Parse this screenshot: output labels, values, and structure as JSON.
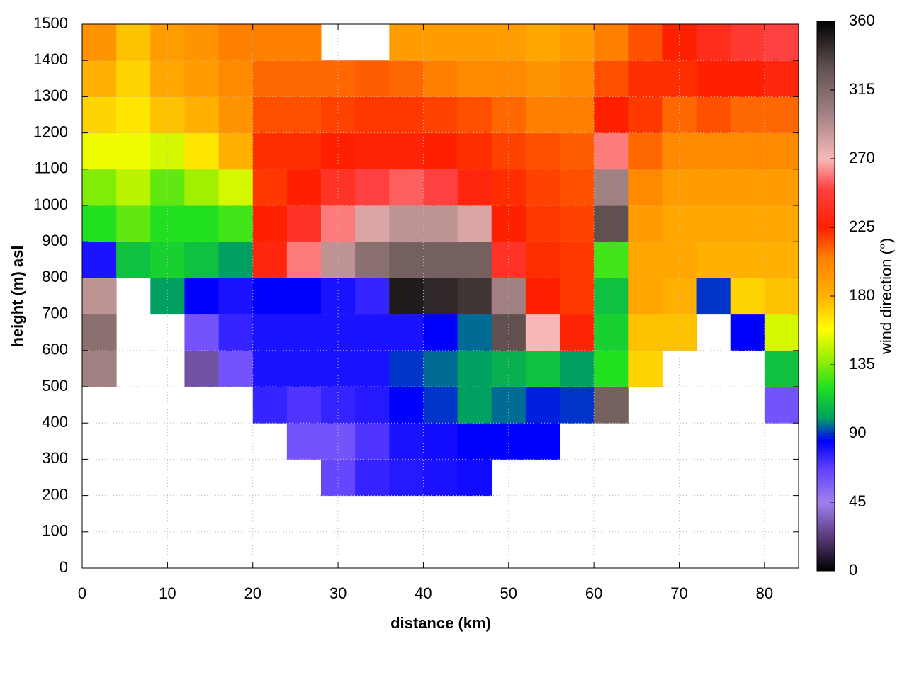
{
  "chart_data": {
    "type": "heatmap",
    "xlabel": "distance (km)",
    "ylabel": "height (m) asl",
    "colorbar_label": "wind direction (°)",
    "xlim": [
      0,
      84
    ],
    "ylim": [
      0,
      1500
    ],
    "xticks": [
      0,
      10,
      20,
      30,
      40,
      50,
      60,
      70,
      80
    ],
    "yticks": [
      0,
      100,
      200,
      300,
      400,
      500,
      600,
      700,
      800,
      900,
      1000,
      1100,
      1200,
      1300,
      1400,
      1500
    ],
    "zlim": [
      0,
      360
    ],
    "zticks": [
      0,
      45,
      90,
      135,
      180,
      225,
      270,
      315,
      360
    ],
    "grid": true,
    "colorscale": [
      [
        0,
        "#000000"
      ],
      [
        22,
        "#5a3a7a"
      ],
      [
        45,
        "#a080f0"
      ],
      [
        67,
        "#6040ff"
      ],
      [
        85,
        "#0000ff"
      ],
      [
        100,
        "#00a060"
      ],
      [
        120,
        "#20e020"
      ],
      [
        140,
        "#a0f000"
      ],
      [
        158,
        "#ffff00"
      ],
      [
        180,
        "#ffb000"
      ],
      [
        205,
        "#ff8000"
      ],
      [
        225,
        "#ff2000"
      ],
      [
        250,
        "#ff4040"
      ],
      [
        270,
        "#f8b8b8"
      ],
      [
        300,
        "#a08080"
      ],
      [
        330,
        "#605050"
      ],
      [
        360,
        "#000000"
      ]
    ],
    "x": [
      2,
      6,
      10,
      14,
      18,
      22,
      26,
      30,
      34,
      38,
      42,
      46,
      50,
      54,
      58,
      62,
      66,
      70,
      74,
      78,
      82
    ],
    "y": [
      50,
      150,
      250,
      350,
      450,
      550,
      650,
      750,
      850,
      950,
      1050,
      1150,
      1250,
      1350,
      1450
    ],
    "values": [
      [
        null,
        null,
        null,
        null,
        null,
        300,
        310,
        290,
        80,
        120,
        135,
        155,
        170,
        180,
        195
      ],
      [
        null,
        null,
        null,
        null,
        null,
        null,
        null,
        null,
        110,
        130,
        145,
        155,
        165,
        170,
        175
      ],
      [
        null,
        null,
        null,
        null,
        null,
        null,
        null,
        100,
        115,
        120,
        130,
        150,
        175,
        185,
        190
      ],
      [
        null,
        null,
        null,
        null,
        null,
        30,
        60,
        85,
        110,
        120,
        140,
        165,
        180,
        190,
        195
      ],
      [
        null,
        null,
        null,
        null,
        null,
        60,
        75,
        80,
        100,
        125,
        150,
        180,
        195,
        200,
        205
      ],
      [
        null,
        null,
        null,
        null,
        75,
        80,
        80,
        85,
        230,
        225,
        220,
        222,
        215,
        210,
        205
      ],
      [
        null,
        null,
        null,
        60,
        70,
        80,
        80,
        85,
        260,
        240,
        225,
        222,
        215,
        210,
        205
      ],
      [
        null,
        null,
        65,
        60,
        75,
        80,
        80,
        80,
        290,
        260,
        240,
        225,
        218,
        210,
        null
      ],
      [
        null,
        null,
        75,
        70,
        78,
        80,
        80,
        75,
        310,
        280,
        250,
        228,
        220,
        212,
        null
      ],
      [
        null,
        null,
        78,
        80,
        85,
        90,
        80,
        350,
        320,
        290,
        255,
        228,
        220,
        210,
        190
      ],
      [
        null,
        null,
        80,
        82,
        90,
        95,
        85,
        345,
        320,
        290,
        250,
        225,
        218,
        205,
        190
      ],
      [
        null,
        null,
        82,
        85,
        100,
        100,
        95,
        340,
        320,
        280,
        230,
        222,
        215,
        200,
        190
      ],
      [
        null,
        null,
        null,
        85,
        95,
        105,
        330,
        300,
        240,
        225,
        222,
        218,
        210,
        200,
        190
      ],
      [
        null,
        null,
        null,
        85,
        88,
        110,
        270,
        225,
        222,
        220,
        218,
        215,
        205,
        195,
        185
      ],
      [
        null,
        null,
        null,
        null,
        90,
        100,
        228,
        220,
        220,
        218,
        215,
        212,
        205,
        200,
        190
      ],
      [
        null,
        null,
        null,
        null,
        320,
        120,
        115,
        110,
        125,
        330,
        300,
        260,
        225,
        215,
        205
      ],
      [
        null,
        null,
        null,
        null,
        null,
        170,
        175,
        185,
        185,
        190,
        200,
        210,
        220,
        222,
        215
      ],
      [
        null,
        null,
        null,
        null,
        null,
        null,
        175,
        180,
        185,
        185,
        190,
        200,
        210,
        222,
        225
      ],
      [
        null,
        null,
        null,
        null,
        null,
        null,
        null,
        90,
        180,
        185,
        190,
        200,
        215,
        225,
        235
      ],
      [
        null,
        null,
        null,
        null,
        null,
        null,
        85,
        170,
        180,
        185,
        190,
        200,
        210,
        225,
        245
      ],
      [
        null,
        null,
        null,
        null,
        60,
        110,
        150,
        175,
        180,
        185,
        190,
        200,
        210,
        230,
        250
      ]
    ]
  }
}
